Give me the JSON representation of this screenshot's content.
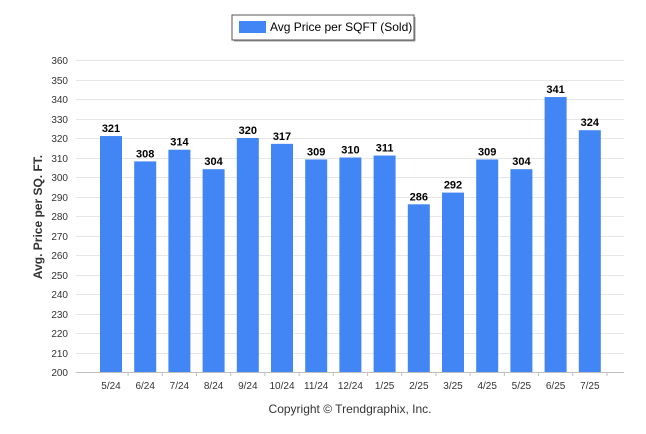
{
  "legend": {
    "label": "Avg Price per SQFT (Sold)"
  },
  "footer": {
    "copyright": "Copyright © Trendgraphix, Inc."
  },
  "colors": {
    "bar": "#4285f4",
    "grid": "#e6e6e6",
    "axis": "#bfbfbf"
  },
  "chart_data": {
    "type": "bar",
    "categories": [
      "5/24",
      "6/24",
      "7/24",
      "8/24",
      "9/24",
      "10/24",
      "11/24",
      "12/24",
      "1/25",
      "2/25",
      "3/25",
      "4/25",
      "5/25",
      "6/25",
      "7/25"
    ],
    "series": [
      {
        "name": "Avg Price per SQFT (Sold)",
        "values": [
          321,
          308,
          314,
          304,
          320,
          317,
          309,
          310,
          311,
          286,
          292,
          309,
          304,
          341,
          324
        ]
      }
    ],
    "ylabel": "Avg. Price per SQ. FT.",
    "ylim": [
      200,
      360
    ],
    "yticks": [
      200,
      210,
      220,
      230,
      240,
      250,
      260,
      270,
      280,
      290,
      300,
      310,
      320,
      330,
      340,
      350,
      360
    ],
    "grid": true,
    "legend_position": "top-center"
  }
}
